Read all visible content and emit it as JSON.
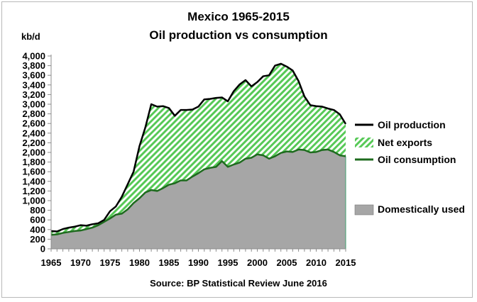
{
  "title_line1": "Mexico 1965-2015",
  "title_line2": "Oil production vs consumption",
  "unit_label": "kb/d",
  "source": "Source: BP Statistical Review  June 2016",
  "legend": {
    "production": "Oil production",
    "net_exports": "Net exports",
    "consumption": "Oil consumption",
    "domestic": "Domestically used"
  },
  "colors": {
    "production_line": "#000000",
    "consumption_line": "#1e6b1e",
    "net_exports_hatch": "#57c957",
    "domestic_fill": "#a6a6a6"
  },
  "chart_data": {
    "type": "area",
    "title": "Mexico 1965-2015 Oil production vs consumption",
    "ylabel": "kb/d",
    "xlabel": "",
    "ylim": [
      0,
      4000
    ],
    "yticks": [
      0,
      200,
      400,
      600,
      800,
      1000,
      1200,
      1400,
      1600,
      1800,
      2000,
      2200,
      2400,
      2600,
      2800,
      3000,
      3200,
      3400,
      3600,
      3800,
      4000
    ],
    "ytick_labels": [
      "0",
      "200",
      "400",
      "600",
      "800",
      "1,000",
      "1,200",
      "1,400",
      "1,600",
      "1,800",
      "2,000",
      "2,200",
      "2,400",
      "2,600",
      "2,800",
      "3,000",
      "3,200",
      "3,400",
      "3,600",
      "3,800",
      "4,000"
    ],
    "xlim": [
      1965,
      2015
    ],
    "xticks": [
      1965,
      1970,
      1975,
      1980,
      1985,
      1990,
      1995,
      2000,
      2005,
      2010,
      2015
    ],
    "grid": false,
    "legend_position": "right",
    "x": [
      1965,
      1966,
      1967,
      1968,
      1969,
      1970,
      1971,
      1972,
      1973,
      1974,
      1975,
      1976,
      1977,
      1978,
      1979,
      1980,
      1981,
      1982,
      1983,
      1984,
      1985,
      1986,
      1987,
      1988,
      1989,
      1990,
      1991,
      1992,
      1993,
      1994,
      1995,
      1996,
      1997,
      1998,
      1999,
      2000,
      2001,
      2002,
      2003,
      2004,
      2005,
      2006,
      2007,
      2008,
      2009,
      2010,
      2011,
      2012,
      2013,
      2014,
      2015
    ],
    "series": [
      {
        "name": "Oil production",
        "values": [
          370,
          360,
          410,
          440,
          460,
          490,
          480,
          510,
          530,
          600,
          780,
          880,
          1080,
          1340,
          1600,
          2130,
          2520,
          3000,
          2950,
          2960,
          2920,
          2760,
          2880,
          2880,
          2890,
          2950,
          3100,
          3110,
          3130,
          3140,
          3060,
          3270,
          3410,
          3500,
          3370,
          3460,
          3580,
          3600,
          3800,
          3840,
          3780,
          3700,
          3480,
          3160,
          2980,
          2960,
          2950,
          2910,
          2880,
          2790,
          2590
        ]
      },
      {
        "name": "Oil consumption",
        "values": [
          290,
          300,
          330,
          350,
          370,
          380,
          410,
          440,
          490,
          560,
          630,
          710,
          730,
          820,
          950,
          1050,
          1170,
          1220,
          1200,
          1260,
          1330,
          1360,
          1420,
          1420,
          1500,
          1570,
          1650,
          1680,
          1700,
          1820,
          1700,
          1750,
          1790,
          1870,
          1890,
          1960,
          1940,
          1870,
          1920,
          1990,
          2020,
          2010,
          2060,
          2050,
          2000,
          2010,
          2050,
          2060,
          2010,
          1940,
          1920
        ]
      }
    ],
    "net_exports_label": "Net exports",
    "domestic_label": "Domestically used"
  }
}
